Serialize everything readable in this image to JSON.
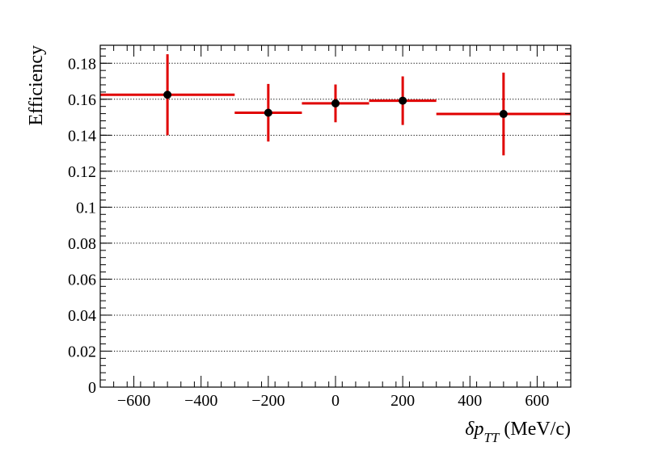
{
  "chart_data": {
    "type": "scatter",
    "title": "",
    "xlabel": {
      "symbol": "δp",
      "subscript": "TT",
      "unit": "(MeV/c)"
    },
    "ylabel": "Efficiency",
    "xlim": [
      -700,
      700
    ],
    "ylim": [
      0,
      0.19
    ],
    "grid": "horizontal-dotted",
    "legend": "none",
    "x_ticks": [
      -600,
      -400,
      -200,
      0,
      200,
      400,
      600
    ],
    "x_tick_labels": [
      "−600",
      "−400",
      "−200",
      "0",
      "200",
      "400",
      "600"
    ],
    "y_ticks": [
      0,
      0.02,
      0.04,
      0.06,
      0.08,
      0.1,
      0.12,
      0.14,
      0.16,
      0.18
    ],
    "y_tick_labels": [
      "0",
      "0.02",
      "0.04",
      "0.06",
      "0.08",
      "0.1",
      "0.12",
      "0.14",
      "0.16",
      "0.18"
    ],
    "points": [
      {
        "x": -500,
        "y": 0.1625,
        "x_low": -700,
        "x_high": -300,
        "y_err": 0.0225
      },
      {
        "x": -200,
        "y": 0.1525,
        "x_low": -300,
        "x_high": -100,
        "y_err": 0.016
      },
      {
        "x": 0,
        "y": 0.1577,
        "x_low": -100,
        "x_high": 100,
        "y_err": 0.0105
      },
      {
        "x": 200,
        "y": 0.1592,
        "x_low": 100,
        "x_high": 300,
        "y_err": 0.0135
      },
      {
        "x": 500,
        "y": 0.1518,
        "x_low": 300,
        "x_high": 700,
        "y_err": 0.023
      }
    ],
    "colors": {
      "error_bar": "#e00000",
      "marker": "#000000",
      "grid": "#000000",
      "frame": "#000000"
    }
  }
}
